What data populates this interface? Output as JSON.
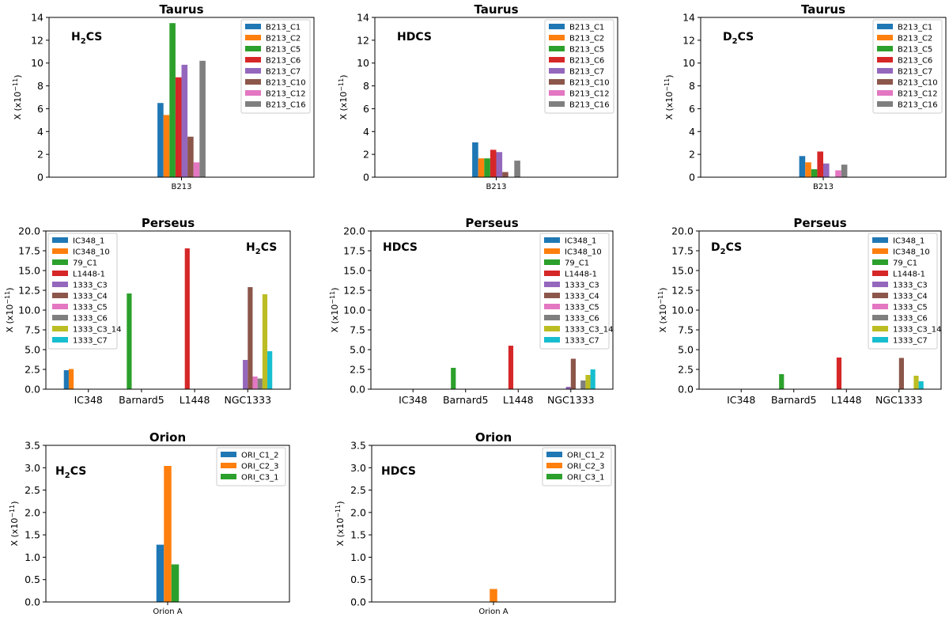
{
  "colors": {
    "tab10": [
      "#1f77b4",
      "#ff7f0e",
      "#2ca02c",
      "#d62728",
      "#9467bd",
      "#8c564b",
      "#e377c2",
      "#7f7f7f",
      "#bcbd22",
      "#17becf"
    ]
  },
  "ylabel_prefix": "X (x10",
  "ylabel_exp": "−11",
  "ylabel_suffix": ")",
  "chart_data": [
    {
      "type": "bar",
      "title": "Taurus",
      "molecule_base": "H",
      "molecule_sub": "2",
      "molecule_rest": "CS",
      "categories": [
        "B213"
      ],
      "ylim": [
        0,
        14
      ],
      "yticks": [
        "0",
        "2",
        "4",
        "6",
        "8",
        "10",
        "12",
        "14"
      ],
      "series": [
        {
          "name": "B213_C1",
          "values": [
            6.5
          ]
        },
        {
          "name": "B213_C2",
          "values": [
            5.45
          ]
        },
        {
          "name": "B213_C5",
          "values": [
            13.5
          ]
        },
        {
          "name": "B213_C6",
          "values": [
            8.75
          ]
        },
        {
          "name": "B213_C7",
          "values": [
            9.85
          ]
        },
        {
          "name": "B213_C10",
          "values": [
            3.55
          ]
        },
        {
          "name": "B213_C12",
          "values": [
            1.3
          ]
        },
        {
          "name": "B213_C16",
          "values": [
            10.2
          ]
        }
      ]
    },
    {
      "type": "bar",
      "title": "Taurus",
      "molecule_base": "HDCS",
      "molecule_sub": "",
      "molecule_rest": "",
      "categories": [
        "B213"
      ],
      "ylim": [
        0,
        14
      ],
      "yticks": [
        "0",
        "2",
        "4",
        "6",
        "8",
        "10",
        "12",
        "14"
      ],
      "series": [
        {
          "name": "B213_C1",
          "values": [
            3.05
          ]
        },
        {
          "name": "B213_C2",
          "values": [
            1.65
          ]
        },
        {
          "name": "B213_C5",
          "values": [
            1.65
          ]
        },
        {
          "name": "B213_C6",
          "values": [
            2.4
          ]
        },
        {
          "name": "B213_C7",
          "values": [
            2.2
          ]
        },
        {
          "name": "B213_C10",
          "values": [
            0.45
          ]
        },
        {
          "name": "B213_C12",
          "values": [
            0
          ]
        },
        {
          "name": "B213_C16",
          "values": [
            1.45
          ]
        }
      ]
    },
    {
      "type": "bar",
      "title": "Taurus",
      "molecule_base": "D",
      "molecule_sub": "2",
      "molecule_rest": "CS",
      "categories": [
        "B213"
      ],
      "ylim": [
        0,
        14
      ],
      "yticks": [
        "0",
        "2",
        "4",
        "6",
        "8",
        "10",
        "12",
        "14"
      ],
      "series": [
        {
          "name": "B213_C1",
          "values": [
            1.85
          ]
        },
        {
          "name": "B213_C2",
          "values": [
            1.3
          ]
        },
        {
          "name": "B213_C5",
          "values": [
            0.7
          ]
        },
        {
          "name": "B213_C6",
          "values": [
            2.25
          ]
        },
        {
          "name": "B213_C7",
          "values": [
            1.2
          ]
        },
        {
          "name": "B213_C10",
          "values": [
            0
          ]
        },
        {
          "name": "B213_C12",
          "values": [
            0.6
          ]
        },
        {
          "name": "B213_C16",
          "values": [
            1.1
          ]
        }
      ]
    },
    {
      "type": "bar",
      "title": "Perseus",
      "molecule_base": "H",
      "molecule_sub": "2",
      "molecule_rest": "CS",
      "categories": [
        "IC348",
        "Barnard5",
        "L1448",
        "NGC1333"
      ],
      "ylim": [
        0,
        20
      ],
      "yticks": [
        "0.0",
        "2.5",
        "5.0",
        "7.5",
        "10.0",
        "12.5",
        "15.0",
        "17.5",
        "20.0"
      ],
      "series": [
        {
          "name": "IC348_1",
          "values": [
            2.4,
            0,
            0,
            0
          ]
        },
        {
          "name": "IC348_10",
          "values": [
            2.55,
            0,
            0,
            0
          ]
        },
        {
          "name": "79_C1",
          "values": [
            0,
            12.1,
            0,
            0
          ]
        },
        {
          "name": "L1448-1",
          "values": [
            0,
            0,
            17.8,
            0
          ]
        },
        {
          "name": "1333_C3",
          "values": [
            0,
            0,
            0,
            3.7
          ]
        },
        {
          "name": "1333_C4",
          "values": [
            0,
            0,
            0,
            12.9
          ]
        },
        {
          "name": "1333_C5",
          "values": [
            0,
            0,
            0,
            1.6
          ]
        },
        {
          "name": "1333_C6",
          "values": [
            0,
            0,
            0,
            1.35
          ]
        },
        {
          "name": "1333_C3_14",
          "values": [
            0,
            0,
            0,
            12.0
          ]
        },
        {
          "name": "1333_C7",
          "values": [
            0,
            0,
            0,
            4.8
          ]
        }
      ]
    },
    {
      "type": "bar",
      "title": "Perseus",
      "molecule_base": "HDCS",
      "molecule_sub": "",
      "molecule_rest": "",
      "categories": [
        "IC348",
        "Barnard5",
        "L1448",
        "NGC1333"
      ],
      "ylim": [
        0,
        20
      ],
      "yticks": [
        "0.0",
        "2.5",
        "5.0",
        "7.5",
        "10.0",
        "12.5",
        "15.0",
        "17.5",
        "20.0"
      ],
      "series": [
        {
          "name": "IC348_1",
          "values": [
            0,
            0,
            0,
            0
          ]
        },
        {
          "name": "IC348_10",
          "values": [
            0,
            0,
            0,
            0
          ]
        },
        {
          "name": "79_C1",
          "values": [
            0,
            2.7,
            0,
            0
          ]
        },
        {
          "name": "L1448-1",
          "values": [
            0,
            0,
            5.5,
            0
          ]
        },
        {
          "name": "1333_C3",
          "values": [
            0,
            0,
            0,
            0.3
          ]
        },
        {
          "name": "1333_C4",
          "values": [
            0,
            0,
            0,
            3.85
          ]
        },
        {
          "name": "1333_C5",
          "values": [
            0,
            0,
            0,
            0
          ]
        },
        {
          "name": "1333_C6",
          "values": [
            0,
            0,
            0,
            1.1
          ]
        },
        {
          "name": "1333_C3_14",
          "values": [
            0,
            0,
            0,
            1.8
          ]
        },
        {
          "name": "1333_C7",
          "values": [
            0,
            0,
            0,
            2.5
          ]
        }
      ]
    },
    {
      "type": "bar",
      "title": "Perseus",
      "molecule_base": "D",
      "molecule_sub": "2",
      "molecule_rest": "CS",
      "categories": [
        "IC348",
        "Barnard5",
        "L1448",
        "NGC1333"
      ],
      "ylim": [
        0,
        20
      ],
      "yticks": [
        "0.0",
        "2.5",
        "5.0",
        "7.5",
        "10.0",
        "12.5",
        "15.0",
        "17.5",
        "20.0"
      ],
      "series": [
        {
          "name": "IC348_1",
          "values": [
            0,
            0,
            0,
            0
          ]
        },
        {
          "name": "IC348_10",
          "values": [
            0,
            0,
            0,
            0
          ]
        },
        {
          "name": "79_C1",
          "values": [
            0,
            1.9,
            0,
            0
          ]
        },
        {
          "name": "L1448-1",
          "values": [
            0,
            0,
            4.0,
            0
          ]
        },
        {
          "name": "1333_C3",
          "values": [
            0,
            0,
            0,
            0
          ]
        },
        {
          "name": "1333_C4",
          "values": [
            0,
            0,
            0,
            3.95
          ]
        },
        {
          "name": "1333_C5",
          "values": [
            0,
            0,
            0,
            0
          ]
        },
        {
          "name": "1333_C6",
          "values": [
            0,
            0,
            0,
            0
          ]
        },
        {
          "name": "1333_C3_14",
          "values": [
            0,
            0,
            0,
            1.7
          ]
        },
        {
          "name": "1333_C7",
          "values": [
            0,
            0,
            0,
            1.0
          ]
        }
      ]
    },
    {
      "type": "bar",
      "title": "Orion",
      "molecule_base": "H",
      "molecule_sub": "2",
      "molecule_rest": "CS",
      "categories": [
        "Orion A"
      ],
      "ylim": [
        0,
        3.5
      ],
      "yticks": [
        "0.0",
        "0.5",
        "1.0",
        "1.5",
        "2.0",
        "2.5",
        "3.0",
        "3.5"
      ],
      "series": [
        {
          "name": "ORI_C1_2",
          "values": [
            1.28
          ]
        },
        {
          "name": "ORI_C2_3",
          "values": [
            3.04
          ]
        },
        {
          "name": "ORI_C3_1",
          "values": [
            0.84
          ]
        }
      ]
    },
    {
      "type": "bar",
      "title": "Orion",
      "molecule_base": "HDCS",
      "molecule_sub": "",
      "molecule_rest": "",
      "categories": [
        "Orion A"
      ],
      "ylim": [
        0,
        3.5
      ],
      "yticks": [
        "0.0",
        "0.5",
        "1.0",
        "1.5",
        "2.0",
        "2.5",
        "3.0",
        "3.5"
      ],
      "series": [
        {
          "name": "ORI_C1_2",
          "values": [
            0
          ]
        },
        {
          "name": "ORI_C2_3",
          "values": [
            0.29
          ]
        },
        {
          "name": "ORI_C3_1",
          "values": [
            0
          ]
        }
      ]
    }
  ]
}
